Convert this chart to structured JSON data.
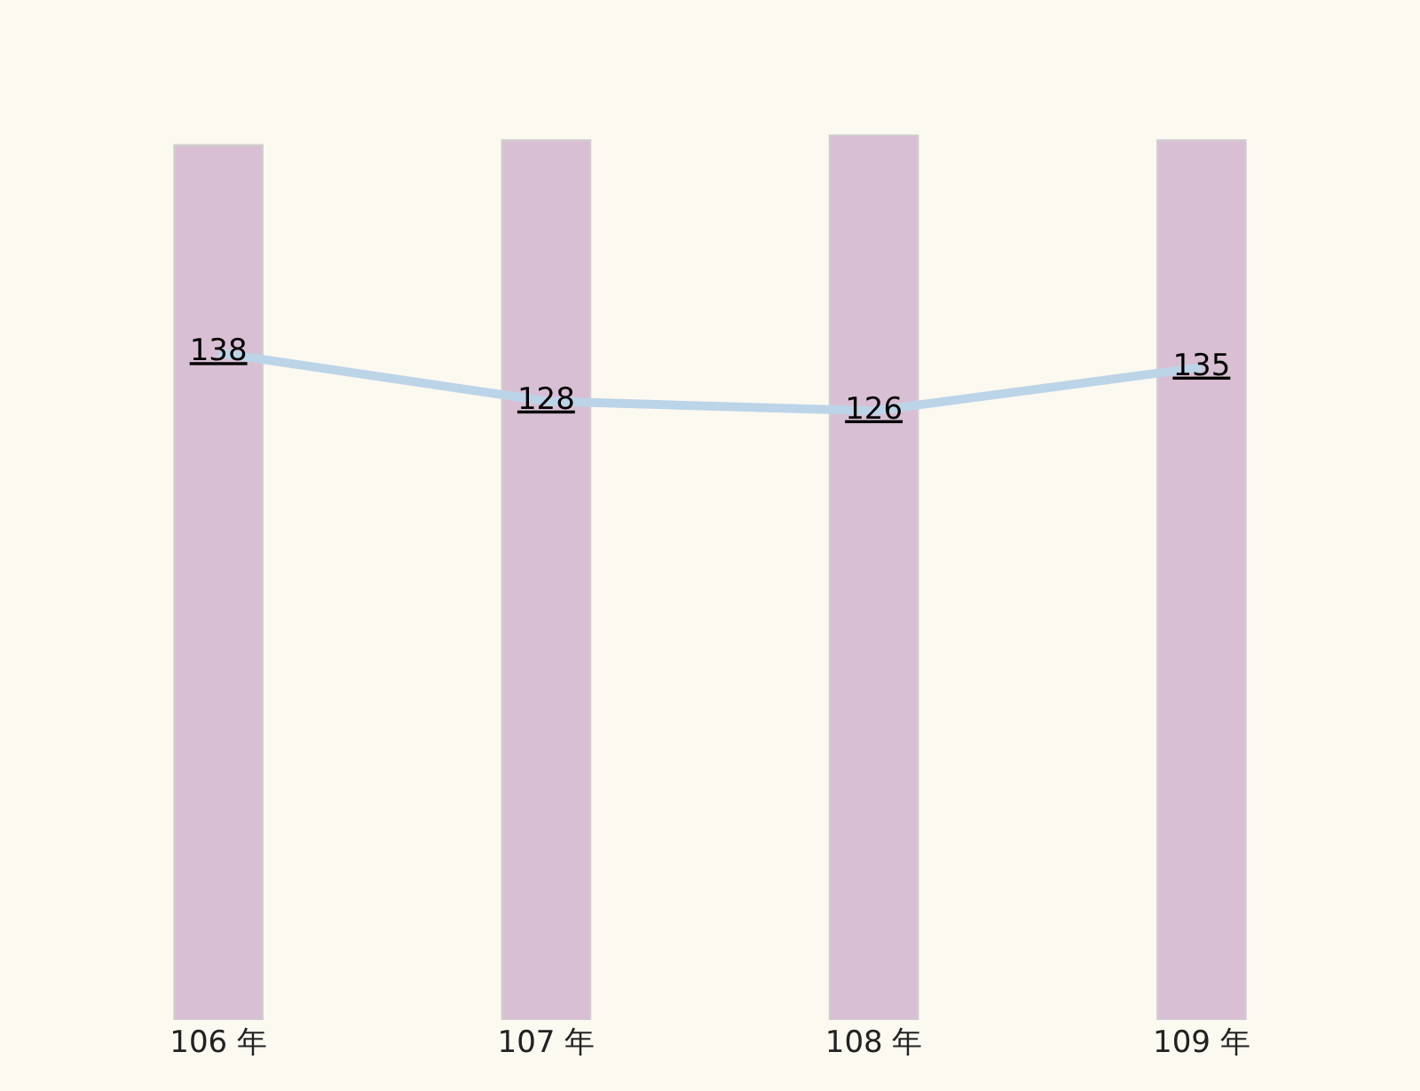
{
  "chart_data": {
    "type": "bar",
    "categories": [
      "106 年",
      "107 年",
      "108 年",
      "109 年"
    ],
    "legend": false,
    "grid": false,
    "series": [
      {
        "color": "#d9bfd3",
        "values": [
          181,
          182,
          183,
          182
        ]
      },
      {
        "type": "line",
        "color": "#bcd4e8",
        "values": [
          138,
          128,
          126,
          135
        ],
        "data_labels": true
      }
    ]
  }
}
